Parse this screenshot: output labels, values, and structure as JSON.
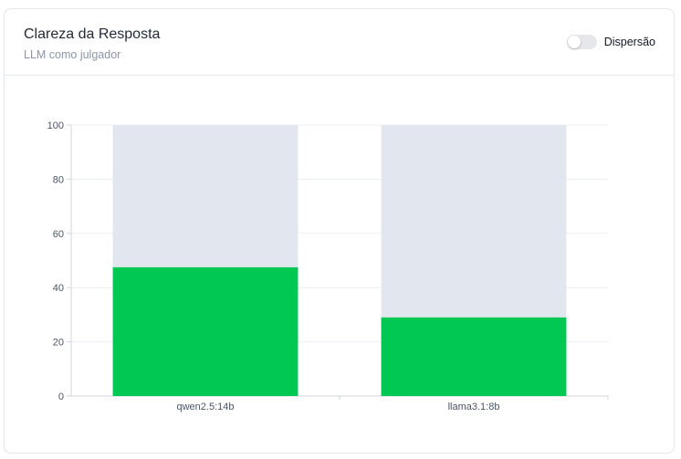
{
  "card": {
    "title": "Clareza da Resposta",
    "subtitle": "LLM como julgador"
  },
  "toggle": {
    "label": "Dispersão",
    "checked": false
  },
  "colors": {
    "value_bar": "#00c853",
    "track_bar": "#e2e6ee"
  },
  "chart_data": {
    "type": "bar",
    "stacked_to_max": true,
    "categories": [
      "qwen2.5:14b",
      "llama3.1:8b"
    ],
    "values": [
      47.5,
      29
    ],
    "ylim": [
      0,
      100
    ],
    "yticks": [
      0,
      20,
      40,
      60,
      80,
      100
    ],
    "grid": true
  }
}
